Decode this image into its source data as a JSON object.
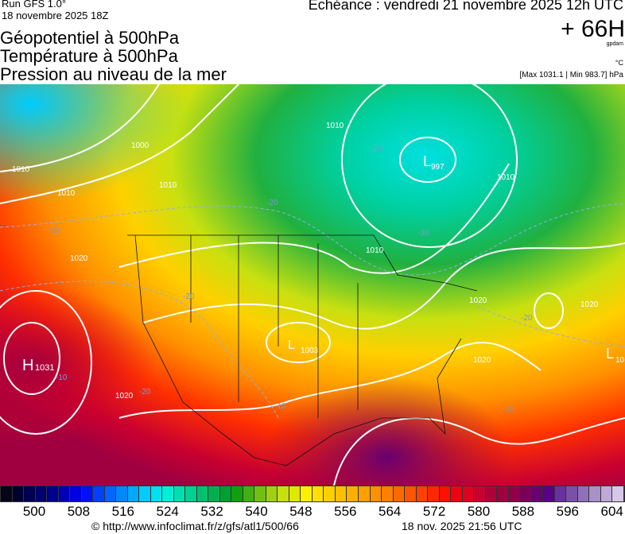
{
  "header": {
    "run": "Run GFS 1.0°",
    "run_date": "18 novembre 2025 18Z",
    "echeance": "Echéance : vendredi 21 novembre 2025 12h UTC",
    "lead": "+ 66H",
    "unit_geo": "gpdam",
    "unit_temp": "°C",
    "pressure_range": "[Max 1031.1 | Min 983.7] hPa"
  },
  "titles": [
    "Géopotentiel à 500hPa",
    "Température à 500hPa",
    "Pression au niveau de la mer"
  ],
  "map": {
    "pressure_labels": [
      "1000",
      "1010",
      "1010",
      "1020",
      "1020",
      "1020",
      "1010",
      "1010",
      "1020",
      "1010",
      "1020",
      "1010"
    ],
    "centers": [
      {
        "type": "H",
        "value": "1031"
      },
      {
        "type": "L",
        "value": "997"
      },
      {
        "type": "L",
        "value": "1003"
      },
      {
        "type": "L",
        "value": "10"
      }
    ],
    "temp_labels": [
      "-30",
      "-30",
      "-20",
      "-20",
      "-20",
      "-20",
      "-10",
      "-20",
      "-10",
      "-10"
    ]
  },
  "colorbar": {
    "ticks": [
      "500",
      "508",
      "516",
      "524",
      "532",
      "540",
      "548",
      "556",
      "564",
      "572",
      "580",
      "588",
      "596",
      "604"
    ],
    "colors": [
      "#05051a",
      "#00002f",
      "#000050",
      "#00006e",
      "#000090",
      "#0000b8",
      "#0000e0",
      "#0010ff",
      "#0040ff",
      "#0066ff",
      "#0088ff",
      "#00aaff",
      "#00ccff",
      "#00e0f0",
      "#00f0d8",
      "#00e0b0",
      "#00d090",
      "#00c070",
      "#00b050",
      "#00a030",
      "#10a010",
      "#40b010",
      "#70c010",
      "#a0d010",
      "#c8e010",
      "#e0e800",
      "#fff000",
      "#ffe000",
      "#ffd000",
      "#ffc000",
      "#ffb000",
      "#ffa000",
      "#ff9000",
      "#ff8000",
      "#ff6a00",
      "#ff5500",
      "#ff4000",
      "#ff2800",
      "#ff1000",
      "#f00010",
      "#e00020",
      "#c80030",
      "#b00038",
      "#a00040",
      "#900048",
      "#780058",
      "#680070",
      "#580088",
      "#6a30a0",
      "#7a50a8",
      "#9070b8",
      "#a890c8",
      "#c0a8d8",
      "#d8c8e8"
    ]
  },
  "footer": {
    "url": "© http://www.infoclimat.fr/z/gfs/atl1/500/66",
    "timestamp": "18 nov. 2025 21:56 UTC"
  }
}
